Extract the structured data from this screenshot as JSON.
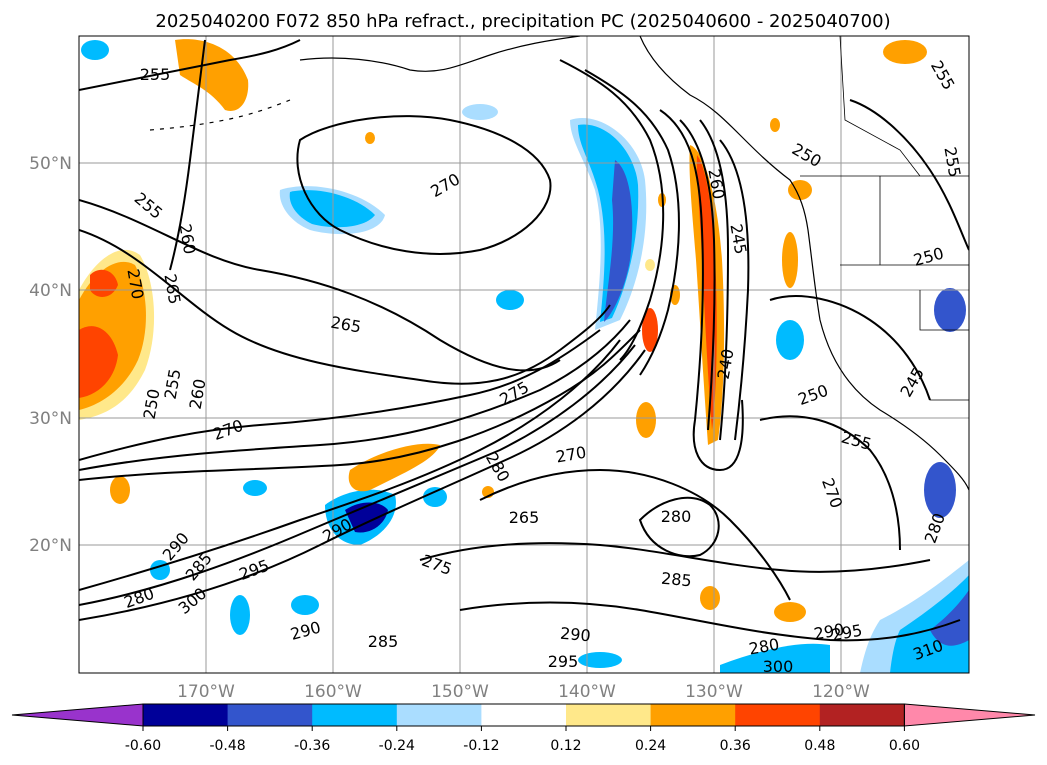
{
  "title": "2025040200 F072 850 hPa refract., precipitation PC (2025040600 - 2025040700)",
  "map": {
    "lat_labels": [
      "50°N",
      "40°N",
      "30°N",
      "20°N"
    ],
    "lon_labels": [
      "170°W",
      "160°W",
      "150°W",
      "140°W",
      "130°W",
      "120°W"
    ],
    "gridlines": true,
    "contour_variable": "850 hPa refractivity",
    "contour_labels": [
      "255",
      "270",
      "260",
      "255",
      "265",
      "270",
      "265",
      "255",
      "260",
      "250",
      "270",
      "275",
      "270",
      "280",
      "265",
      "280",
      "290",
      "290",
      "285",
      "300",
      "280",
      "295",
      "275",
      "285",
      "290",
      "285",
      "290",
      "295",
      "280",
      "290",
      "295",
      "300",
      "310",
      "250",
      "260",
      "245",
      "240",
      "250",
      "255",
      "270",
      "255",
      "250",
      "245",
      "255",
      "280"
    ]
  },
  "colorbar": {
    "ticks": [
      "-0.60",
      "-0.48",
      "-0.36",
      "-0.24",
      "-0.12",
      "0.12",
      "0.24",
      "0.36",
      "0.48",
      "0.60"
    ],
    "colors": [
      "#9933cc",
      "#000099",
      "#3355cc",
      "#00bbff",
      "#aaddff",
      "#ffffff",
      "#ffe88a",
      "#ffa000",
      "#ff4400",
      "#b22222",
      "#ff88aa"
    ],
    "extend": "both"
  }
}
